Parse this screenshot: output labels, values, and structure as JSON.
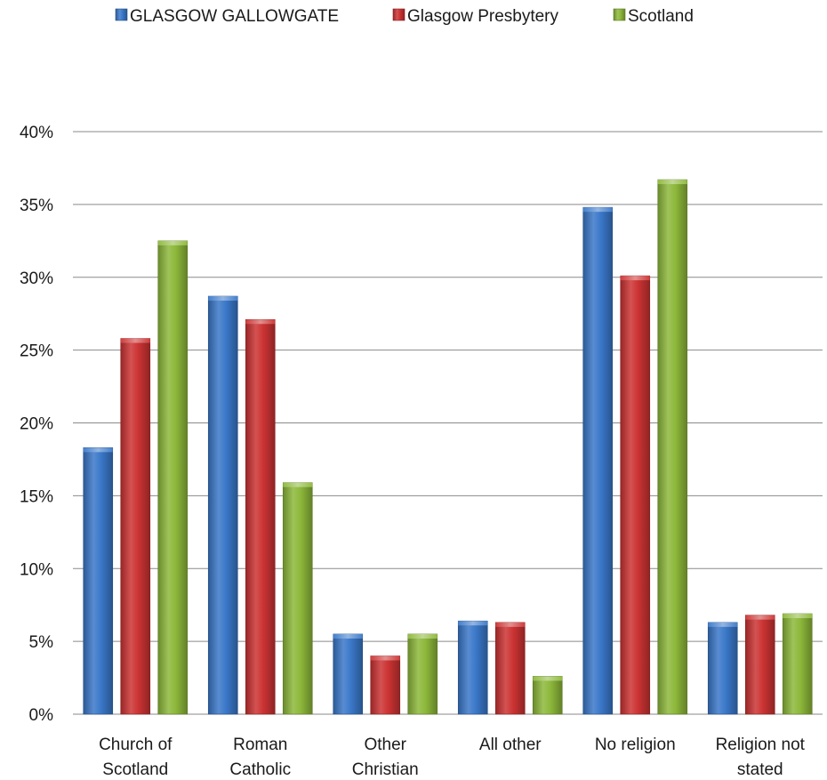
{
  "chart_data": {
    "type": "bar",
    "categories": [
      [
        "Church of",
        "Scotland"
      ],
      [
        "Roman",
        "Catholic"
      ],
      [
        "Other",
        "Christian"
      ],
      [
        "All other"
      ],
      [
        "No religion"
      ],
      [
        "Religion not",
        "stated"
      ]
    ],
    "series": [
      {
        "name": "GLASGOW GALLOWGATE",
        "color": "#3a78c9",
        "values": [
          18.3,
          28.7,
          5.5,
          6.4,
          34.8,
          6.3
        ]
      },
      {
        "name": "Glasgow Presbytery",
        "color": "#cc3333",
        "values": [
          25.8,
          27.1,
          4.0,
          6.3,
          30.1,
          6.8
        ]
      },
      {
        "name": "Scotland",
        "color": "#8db83a",
        "values": [
          32.5,
          15.9,
          5.5,
          2.6,
          36.7,
          6.9
        ]
      }
    ],
    "y_ticks": [
      "0%",
      "5%",
      "10%",
      "15%",
      "20%",
      "25%",
      "30%",
      "35%",
      "40%"
    ],
    "ylim": [
      0,
      40
    ],
    "grid": true,
    "legend_position": "top"
  }
}
